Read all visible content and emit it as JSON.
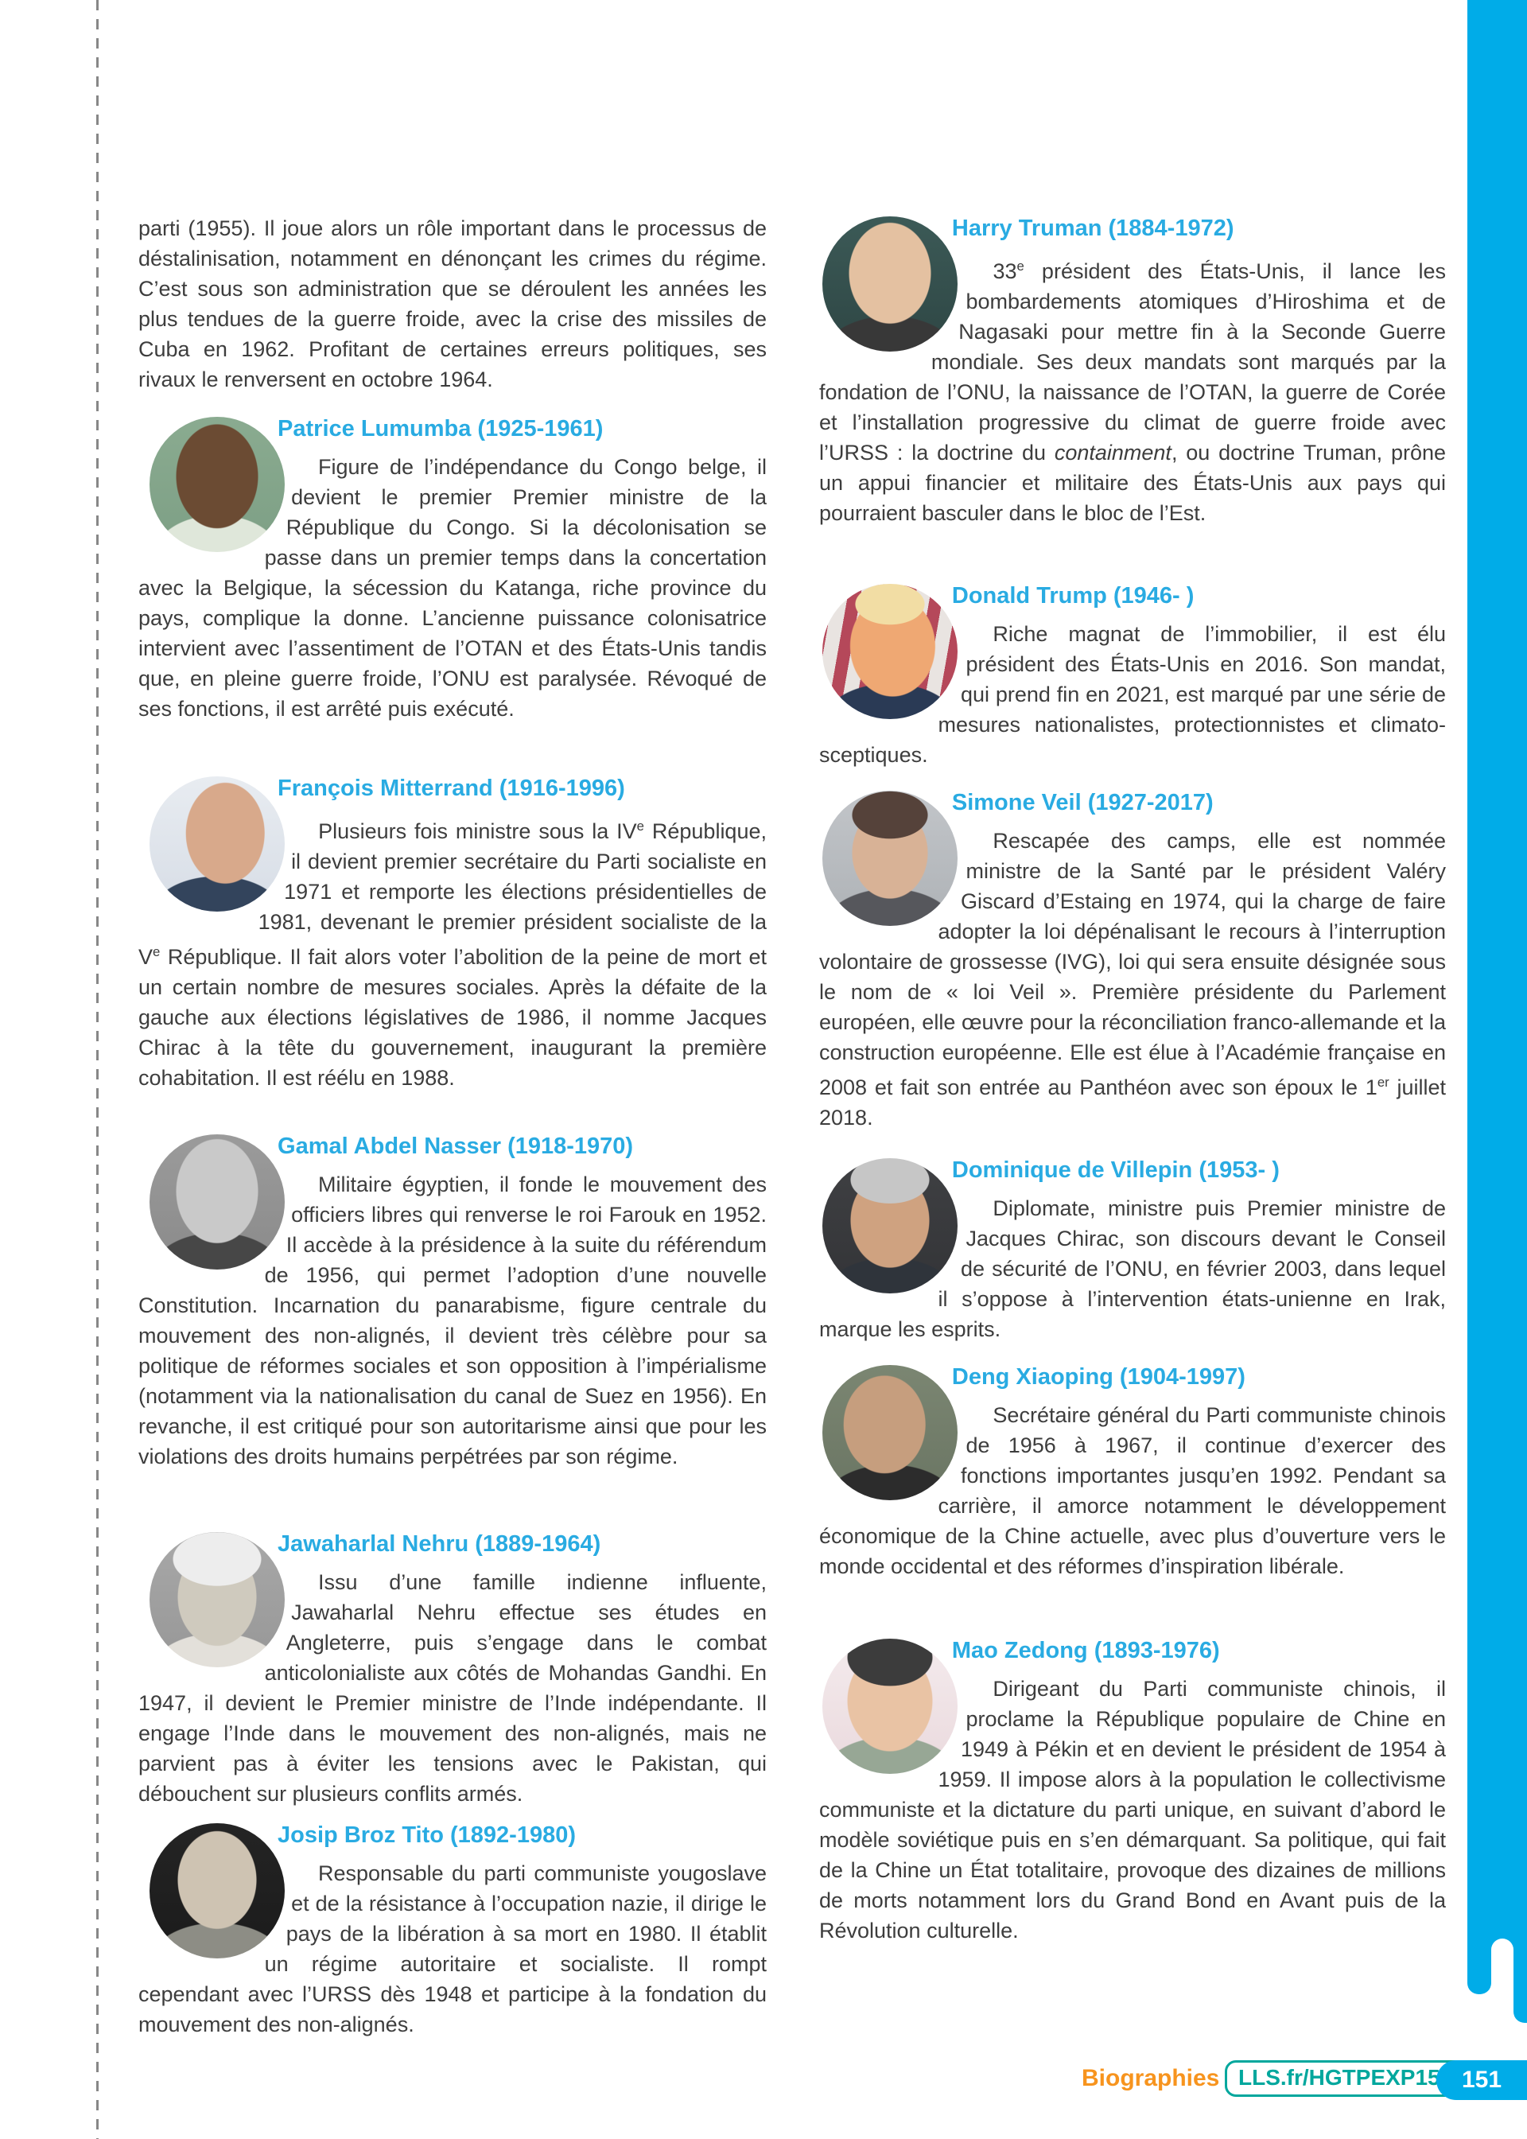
{
  "page": {
    "colors": {
      "accent_blue": "#29abe2",
      "sidebar_blue": "#00ace8",
      "footer_orange": "#f7941e",
      "footer_teal": "#00a79d",
      "body_text": "#3d3d3d"
    },
    "footer": {
      "section_label": "Biographies",
      "link_code": "LLS.fr/HGTPEXP151",
      "page_number": "151"
    }
  },
  "intro_paragraph": "parti (1955). Il joue alors un rôle important dans le processus de déstalinisation, notamment en dénonçant les crimes du régime. C’est sous son administration que se déroulent les années les plus tendues de la guerre froide, avec la crise des missiles de Cuba en 1962. Profitant de certaines erreurs politiques, ses rivaux le renversent en octobre 1964.",
  "bios": {
    "left": [
      {
        "name": "Patrice Lumumba (1925-1961)",
        "portrait": "photo-patrice-lumumba",
        "text": "Figure de l’indépendance du Congo belge, il devient le premier Premier ministre de la République du Congo. Si la décolonisation se passe dans un premier temps dans la concertation avec la Belgique, la sécession du Katanga, riche province du pays, complique la donne. L’ancienne puissance colonisatrice intervient avec l’assentiment de l’OTAN et des États-Unis tandis que, en pleine guerre froide, l’ONU est paralysée. Révoqué de ses fonctions, il est arrêté puis exécuté."
      },
      {
        "name": "François Mitterrand (1916-1996)",
        "portrait": "photo-francois-mitterrand",
        "text": "Plusieurs fois ministre sous la IV<sup>e</sup> République, il devient premier secrétaire du Parti socialiste en 1971 et remporte les élections présidentielles de 1981, devenant le premier président socialiste de la V<sup>e</sup> République. Il fait alors voter l’abolition de la peine de mort et un certain nombre de mesures sociales. Après la défaite de la gauche aux élections législatives de 1986, il nomme Jacques Chirac à la tête du gouvernement, inaugurant la première cohabitation. Il est réélu en 1988."
      },
      {
        "name": "Gamal Abdel Nasser (1918-1970)",
        "portrait": "photo-gamal-abdel-nasser",
        "text": "Militaire égyptien, il fonde le mouvement des officiers libres qui renverse le roi Farouk en 1952. Il accède à la présidence à la suite du référendum de 1956, qui permet l’adoption d’une nouvelle Constitution. Incarnation du panarabisme, figure centrale du mouvement des non-alignés, il devient très célèbre pour sa politique de réformes sociales et son opposition à l’impérialisme (notamment via la nationalisation du canal de Suez en 1956). En revanche, il est critiqué pour son autoritarisme ainsi que pour les violations des droits humains perpétrées par son régime."
      },
      {
        "name": "Jawaharlal Nehru (1889-1964)",
        "portrait": "photo-jawaharlal-nehru",
        "text": "Issu d’une famille indienne influente, Jawaharlal Nehru effectue ses études en Angleterre, puis s’engage dans le combat anticolonialiste aux côtés de Mohandas Gandhi. En 1947, il devient le Premier ministre de l’Inde indépendante. Il engage l’Inde dans le mouvement des non-alignés, mais ne parvient pas à éviter les tensions avec le Pakistan, qui débouchent sur plusieurs conflits armés."
      },
      {
        "name": "Josip Broz Tito (1892-1980)",
        "portrait": "photo-josip-broz-tito",
        "text": "Responsable du parti communiste yougoslave et de la résistance à l’occupation nazie, il dirige le pays de la libération à sa mort en 1980. Il établit un régime autoritaire et socialiste. Il rompt cependant avec l’URSS dès 1948 et participe à la fondation du mouvement des non-alignés."
      }
    ],
    "right": [
      {
        "name": "Harry Truman (1884-1972)",
        "portrait": "photo-harry-truman",
        "text": "33<sup>e</sup> président des États-Unis, il lance les bombardements atomiques d’Hiroshima et de Nagasaki pour mettre fin à la Seconde Guerre mondiale. Ses deux mandats sont marqués par la fondation de l’ONU, la naissance de l’OTAN, la guerre de Corée et l’installation progressive du climat de guerre froide avec l’URSS : la doctrine du <i>containment</i>, ou doctrine Truman, prône un appui financier et militaire des États-Unis aux pays qui pourraient basculer dans le bloc de l’Est."
      },
      {
        "name": "Donald Trump (1946- )",
        "portrait": "photo-donald-trump",
        "text": "Riche magnat de l’immobilier, il est élu président des États-Unis en 2016. Son mandat, qui prend fin en 2021, est marqué par une série de mesures nationalistes, protectionnistes et climato-sceptiques."
      },
      {
        "name": "Simone Veil (1927-2017)",
        "portrait": "photo-simone-veil",
        "text": "Rescapée des camps, elle est nommée ministre de la Santé par le président Valéry Giscard d’Estaing en 1974, qui la charge de faire adopter la loi dépénalisant le recours à l’interruption volontaire de grossesse (IVG), loi qui sera ensuite désignée sous le nom de « loi Veil ». Première présidente du Parlement européen, elle œuvre pour la réconciliation franco-allemande et la construction européenne. Elle est élue à l’Académie française en 2008 et fait son entrée au Panthéon avec son époux le 1<sup>er</sup> juillet 2018."
      },
      {
        "name": "Dominique de Villepin (1953- )",
        "portrait": "photo-dominique-de-villepin",
        "text": "Diplomate, ministre puis Premier ministre de Jacques Chirac, son discours devant le Conseil de sécurité de l’ONU, en février 2003, dans lequel il s’oppose à l’intervention états-unienne en Irak, marque les esprits."
      },
      {
        "name": "Deng Xiaoping (1904-1997)",
        "portrait": "photo-deng-xiaoping",
        "text": "Secrétaire général du Parti communiste chinois de 1956 à 1967, il continue d’exercer des fonctions importantes jusqu’en 1992. Pendant sa carrière, il amorce notamment le développement économique de la Chine actuelle, avec plus d’ouverture vers le monde occidental et des réformes d’inspiration libérale."
      },
      {
        "name": "Mao Zedong (1893-1976)",
        "portrait": "photo-mao-zedong",
        "text": "Dirigeant du Parti communiste chinois, il proclame la République populaire de Chine en 1949 à Pékin et en devient le président de 1954 à 1959. Il impose alors à la population le collectivisme communiste et la dictature du parti unique, en suivant d’abord le modèle soviétique puis en s’en démarquant. Sa politique, qui fait de la Chine un État totalitaire, provoque des dizaines de millions de morts notamment lors du Grand Bond en Avant puis de la Révolution culturelle."
      }
    ]
  }
}
